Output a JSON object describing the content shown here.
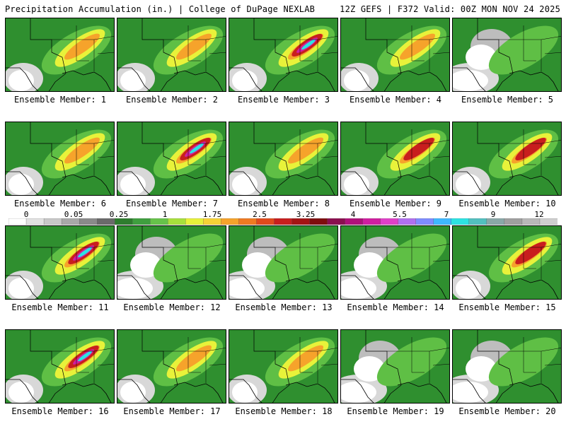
{
  "header": {
    "left": "Precipitation Accumulation (in.) | College of DuPage NEXLAB",
    "right": "12Z GEFS | F372 Valid: 00Z MON NOV 24 2025"
  },
  "legend": {
    "tick_labels": [
      "0",
      "0.05",
      "0.25",
      "1",
      "1.75",
      "2.5",
      "3.25",
      "4",
      "5.5",
      "7",
      "9",
      "12"
    ],
    "colors": [
      "#ffffff",
      "#e2e2e2",
      "#c8c8c8",
      "#a8a8a8",
      "#8a8a8a",
      "#6a6a6a",
      "#2e7d2e",
      "#3f9f3f",
      "#66c34a",
      "#a8e03c",
      "#e8f23a",
      "#f7d236",
      "#f6a32b",
      "#f07a22",
      "#e14a1c",
      "#c81e1e",
      "#a51414",
      "#7f0d0d",
      "#8b0f4f",
      "#b0107a",
      "#d01ea0",
      "#e040c8",
      "#b070f0",
      "#7f8cff",
      "#3fb8ff",
      "#2de3e3",
      "#52c0c0",
      "#8aa8a8",
      "#a0a0a0",
      "#b8b8b8",
      "#cfcfcf"
    ]
  },
  "panels": [
    {
      "label": "Ensemble Member: 1",
      "intensity": 2
    },
    {
      "label": "Ensemble Member: 2",
      "intensity": 2
    },
    {
      "label": "Ensemble Member: 3",
      "intensity": 4
    },
    {
      "label": "Ensemble Member: 4",
      "intensity": 2
    },
    {
      "label": "Ensemble Member: 5",
      "intensity": 1
    },
    {
      "label": "Ensemble Member: 6",
      "intensity": 2
    },
    {
      "label": "Ensemble Member: 7",
      "intensity": 4
    },
    {
      "label": "Ensemble Member: 8",
      "intensity": 2
    },
    {
      "label": "Ensemble Member: 9",
      "intensity": 3
    },
    {
      "label": "Ensemble Member: 10",
      "intensity": 3
    },
    {
      "label": "Ensemble Member: 11",
      "intensity": 4
    },
    {
      "label": "Ensemble Member: 12",
      "intensity": 1
    },
    {
      "label": "Ensemble Member: 13",
      "intensity": 1
    },
    {
      "label": "Ensemble Member: 14",
      "intensity": 1
    },
    {
      "label": "Ensemble Member: 15",
      "intensity": 3
    },
    {
      "label": "Ensemble Member: 16",
      "intensity": 4
    },
    {
      "label": "Ensemble Member: 17",
      "intensity": 2
    },
    {
      "label": "Ensemble Member: 18",
      "intensity": 2
    },
    {
      "label": "Ensemble Member: 19",
      "intensity": 1
    },
    {
      "label": "Ensemble Member: 20",
      "intensity": 1
    }
  ]
}
